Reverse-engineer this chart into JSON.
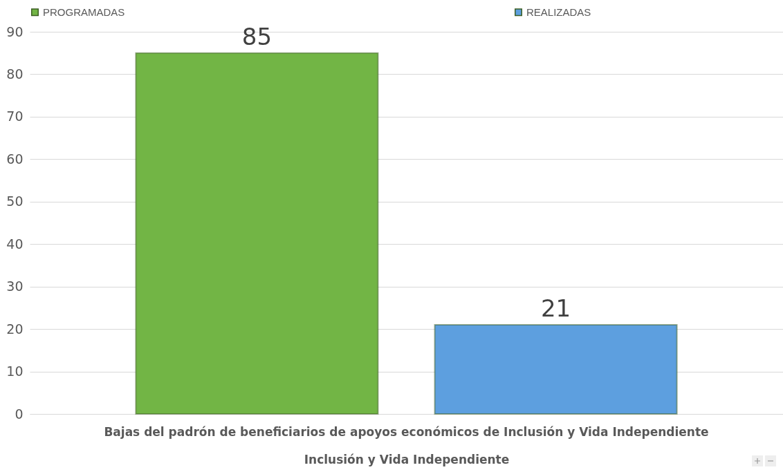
{
  "chart_data": {
    "type": "bar",
    "categories": [
      "Bajas del padrón de beneficiarios de apoyos económicos de Inclusión y Vida Independiente"
    ],
    "xlabel": "Inclusión y Vida Independiente",
    "series": [
      {
        "name": "PROGRAMADAS",
        "color": "#72b545",
        "values": [
          85
        ]
      },
      {
        "name": "REALIZADAS",
        "color": "#5d9fdf",
        "values": [
          21
        ]
      }
    ],
    "ylim": [
      0,
      90
    ],
    "yticks": [
      0,
      10,
      20,
      30,
      40,
      50,
      60,
      70,
      80,
      90
    ],
    "grid": "y",
    "legend": "top",
    "data_labels": true
  }
}
